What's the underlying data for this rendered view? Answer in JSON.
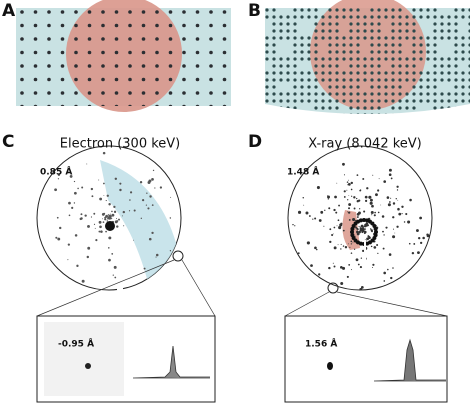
{
  "panels": [
    {
      "label": "A"
    },
    {
      "label": "B"
    },
    {
      "label": "C",
      "title": "Electron (300 keV)",
      "resolution": "0.85 Å",
      "inset_resolution": "-0.95 Å"
    },
    {
      "label": "D",
      "title": "X-ray (8.042 keV)",
      "resolution": "1.48 Å",
      "inset_resolution": "1.56 Å"
    }
  ]
}
